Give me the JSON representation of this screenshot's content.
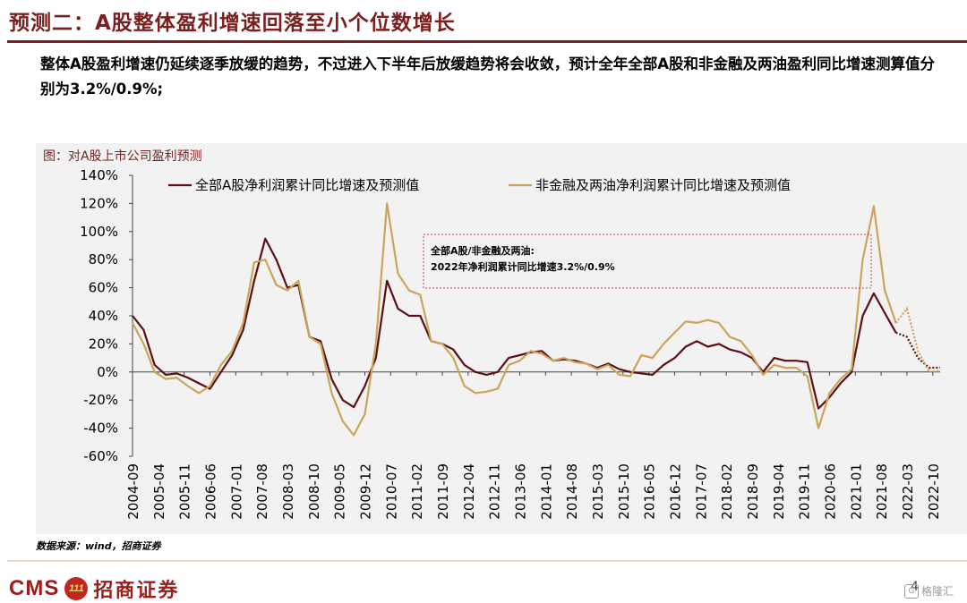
{
  "slide": {
    "title": "预测二：A股整体盈利增速回落至小个位数增长",
    "intro": "整体A股盈利增速仍延续逐季放缓的趋势，不过进入下半年后放缓趋势将会收敛，预计全年全部A股和非金融及两油盈利同比增速测算值分别为3.2%/0.9%;",
    "figure_caption": "图：对A股上市公司盈利预测",
    "source": "数据来源：wind，招商证券",
    "page_number": "4"
  },
  "footer": {
    "brand_en": "CMS",
    "brand_logo_text": "111",
    "brand_cn": "招商证券",
    "watermark": "格隆汇",
    "watermark_icon": "G"
  },
  "chart_data": {
    "type": "line",
    "title": "",
    "xlabel": "",
    "ylabel": "",
    "ylim": [
      -0.6,
      1.4
    ],
    "y_ticks": [
      "-60%",
      "-40%",
      "-20%",
      "0%",
      "20%",
      "40%",
      "60%",
      "80%",
      "100%",
      "120%",
      "140%"
    ],
    "x_tick_labels": [
      "2004-09",
      "2005-04",
      "2005-11",
      "2006-06",
      "2007-01",
      "2007-08",
      "2008-03",
      "2008-10",
      "2009-05",
      "2009-12",
      "2010-07",
      "2011-02",
      "2011-09",
      "2012-04",
      "2012-11",
      "2013-06",
      "2014-01",
      "2014-08",
      "2015-03",
      "2015-10",
      "2016-05",
      "2016-12",
      "2017-07",
      "2018-02",
      "2018-09",
      "2019-04",
      "2019-11",
      "2020-06",
      "2021-01",
      "2021-08",
      "2022-03",
      "2022-10"
    ],
    "x_range": [
      "2004-09",
      "2022-12"
    ],
    "grid": false,
    "legend_position": "top",
    "annotation": {
      "line1": "全部A股/非金融及两油:",
      "line2": "2022年净利润累计同比增速3.2%/0.9%"
    },
    "series": [
      {
        "name": "全部A股净利润累计同比增速及预测值",
        "color": "#5c0f14",
        "points": [
          [
            "2004-09",
            0.4
          ],
          [
            "2004-12",
            0.3
          ],
          [
            "2005-03",
            0.05
          ],
          [
            "2005-06",
            -0.02
          ],
          [
            "2005-09",
            -0.01
          ],
          [
            "2005-12",
            -0.04
          ],
          [
            "2006-03",
            -0.08
          ],
          [
            "2006-06",
            -0.12
          ],
          [
            "2006-09",
            0.0
          ],
          [
            "2006-12",
            0.12
          ],
          [
            "2007-03",
            0.3
          ],
          [
            "2007-06",
            0.65
          ],
          [
            "2007-09",
            0.95
          ],
          [
            "2007-12",
            0.8
          ],
          [
            "2008-03",
            0.6
          ],
          [
            "2008-06",
            0.62
          ],
          [
            "2008-09",
            0.25
          ],
          [
            "2008-12",
            0.22
          ],
          [
            "2009-03",
            -0.05
          ],
          [
            "2009-06",
            -0.2
          ],
          [
            "2009-09",
            -0.25
          ],
          [
            "2009-12",
            -0.1
          ],
          [
            "2010-03",
            0.1
          ],
          [
            "2010-06",
            0.65
          ],
          [
            "2010-09",
            0.45
          ],
          [
            "2010-12",
            0.4
          ],
          [
            "2011-03",
            0.4
          ],
          [
            "2011-06",
            0.22
          ],
          [
            "2011-09",
            0.2
          ],
          [
            "2011-12",
            0.16
          ],
          [
            "2012-03",
            0.05
          ],
          [
            "2012-06",
            0.0
          ],
          [
            "2012-09",
            -0.02
          ],
          [
            "2012-12",
            0.0
          ],
          [
            "2013-03",
            0.1
          ],
          [
            "2013-06",
            0.12
          ],
          [
            "2013-09",
            0.14
          ],
          [
            "2013-12",
            0.15
          ],
          [
            "2014-03",
            0.08
          ],
          [
            "2014-06",
            0.09
          ],
          [
            "2014-09",
            0.08
          ],
          [
            "2014-12",
            0.06
          ],
          [
            "2015-03",
            0.03
          ],
          [
            "2015-06",
            0.06
          ],
          [
            "2015-09",
            0.02
          ],
          [
            "2015-12",
            0.0
          ],
          [
            "2016-03",
            -0.01
          ],
          [
            "2016-06",
            -0.02
          ],
          [
            "2016-09",
            0.05
          ],
          [
            "2016-12",
            0.1
          ],
          [
            "2017-03",
            0.18
          ],
          [
            "2017-06",
            0.22
          ],
          [
            "2017-09",
            0.18
          ],
          [
            "2017-12",
            0.2
          ],
          [
            "2018-03",
            0.16
          ],
          [
            "2018-06",
            0.14
          ],
          [
            "2018-09",
            0.1
          ],
          [
            "2018-12",
            0.0
          ],
          [
            "2019-03",
            0.1
          ],
          [
            "2019-06",
            0.08
          ],
          [
            "2019-09",
            0.08
          ],
          [
            "2019-12",
            0.07
          ],
          [
            "2020-03",
            -0.26
          ],
          [
            "2020-06",
            -0.18
          ],
          [
            "2020-09",
            -0.08
          ],
          [
            "2020-12",
            0.0
          ],
          [
            "2021-03",
            0.4
          ],
          [
            "2021-06",
            0.56
          ],
          [
            "2021-09",
            0.42
          ],
          [
            "2021-12",
            0.28
          ]
        ],
        "forecast": [
          [
            "2021-12",
            0.28
          ],
          [
            "2022-03",
            0.25
          ],
          [
            "2022-06",
            0.1
          ],
          [
            "2022-09",
            0.03
          ],
          [
            "2022-12",
            0.032
          ]
        ]
      },
      {
        "name": "非金融及两油净利润累计同比增速及预测值",
        "color": "#c9a55a",
        "points": [
          [
            "2004-09",
            0.35
          ],
          [
            "2004-12",
            0.2
          ],
          [
            "2005-03",
            0.0
          ],
          [
            "2005-06",
            -0.05
          ],
          [
            "2005-09",
            -0.04
          ],
          [
            "2005-12",
            -0.1
          ],
          [
            "2006-03",
            -0.15
          ],
          [
            "2006-06",
            -0.1
          ],
          [
            "2006-09",
            0.05
          ],
          [
            "2006-12",
            0.15
          ],
          [
            "2007-03",
            0.35
          ],
          [
            "2007-06",
            0.78
          ],
          [
            "2007-09",
            0.8
          ],
          [
            "2007-12",
            0.62
          ],
          [
            "2008-03",
            0.58
          ],
          [
            "2008-06",
            0.65
          ],
          [
            "2008-09",
            0.25
          ],
          [
            "2008-12",
            0.2
          ],
          [
            "2009-03",
            -0.15
          ],
          [
            "2009-06",
            -0.35
          ],
          [
            "2009-09",
            -0.45
          ],
          [
            "2009-12",
            -0.3
          ],
          [
            "2010-03",
            0.2
          ],
          [
            "2010-06",
            1.2
          ],
          [
            "2010-09",
            0.7
          ],
          [
            "2010-12",
            0.58
          ],
          [
            "2011-03",
            0.55
          ],
          [
            "2011-06",
            0.22
          ],
          [
            "2011-09",
            0.2
          ],
          [
            "2011-12",
            0.1
          ],
          [
            "2012-03",
            -0.1
          ],
          [
            "2012-06",
            -0.15
          ],
          [
            "2012-09",
            -0.14
          ],
          [
            "2012-12",
            -0.12
          ],
          [
            "2013-03",
            0.05
          ],
          [
            "2013-06",
            0.08
          ],
          [
            "2013-09",
            0.15
          ],
          [
            "2013-12",
            0.13
          ],
          [
            "2014-03",
            0.08
          ],
          [
            "2014-06",
            0.1
          ],
          [
            "2014-09",
            0.07
          ],
          [
            "2014-12",
            0.06
          ],
          [
            "2015-03",
            0.02
          ],
          [
            "2015-06",
            0.05
          ],
          [
            "2015-09",
            -0.02
          ],
          [
            "2015-12",
            -0.03
          ],
          [
            "2016-03",
            0.12
          ],
          [
            "2016-06",
            0.1
          ],
          [
            "2016-09",
            0.2
          ],
          [
            "2016-12",
            0.28
          ],
          [
            "2017-03",
            0.36
          ],
          [
            "2017-06",
            0.35
          ],
          [
            "2017-09",
            0.37
          ],
          [
            "2017-12",
            0.35
          ],
          [
            "2018-03",
            0.25
          ],
          [
            "2018-06",
            0.22
          ],
          [
            "2018-09",
            0.12
          ],
          [
            "2018-12",
            -0.02
          ],
          [
            "2019-03",
            0.05
          ],
          [
            "2019-06",
            0.03
          ],
          [
            "2019-09",
            0.03
          ],
          [
            "2019-12",
            -0.03
          ],
          [
            "2020-03",
            -0.4
          ],
          [
            "2020-06",
            -0.15
          ],
          [
            "2020-09",
            -0.05
          ],
          [
            "2020-12",
            0.02
          ],
          [
            "2021-03",
            0.8
          ],
          [
            "2021-06",
            1.18
          ],
          [
            "2021-09",
            0.58
          ],
          [
            "2021-12",
            0.35
          ]
        ],
        "forecast": [
          [
            "2021-12",
            0.35
          ],
          [
            "2022-03",
            0.45
          ],
          [
            "2022-06",
            0.15
          ],
          [
            "2022-09",
            0.0
          ],
          [
            "2022-12",
            0.009
          ]
        ]
      }
    ]
  }
}
